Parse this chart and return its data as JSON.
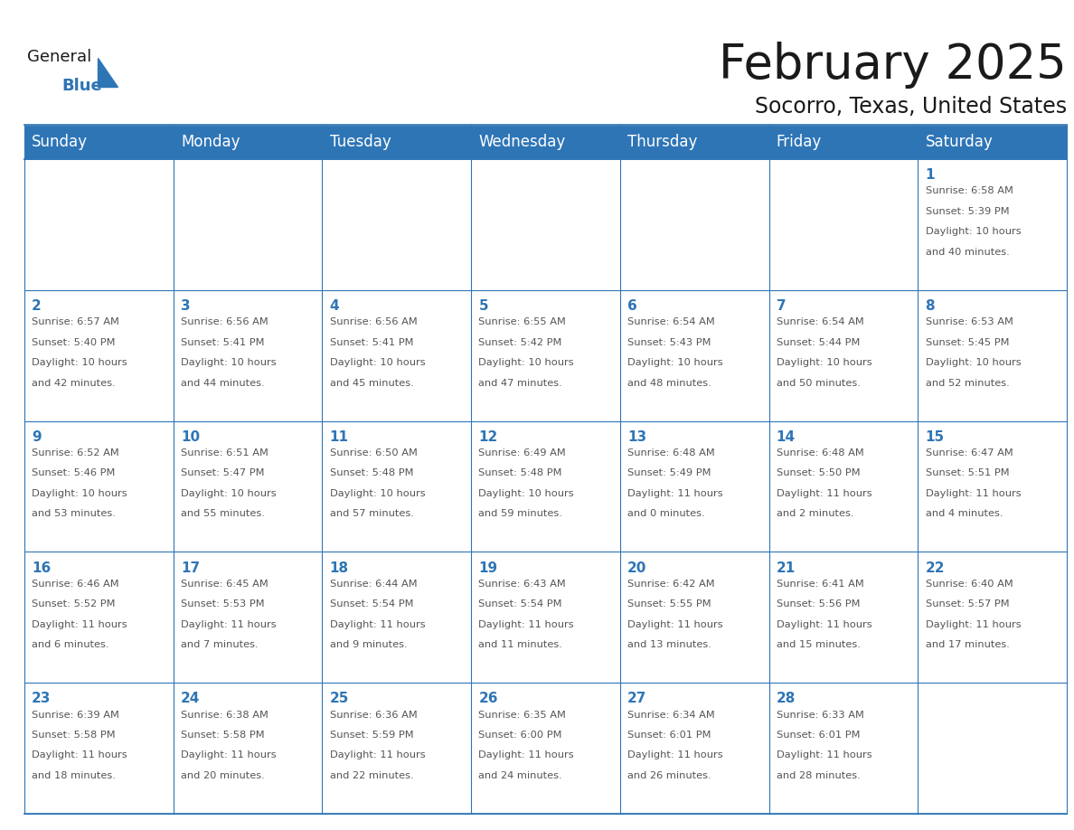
{
  "title": "February 2025",
  "subtitle": "Socorro, Texas, United States",
  "header_color": "#2e75b6",
  "header_text_color": "#ffffff",
  "cell_bg_color": "#ffffff",
  "cell_border_color": "#2e75b6",
  "day_number_color": "#2e75b6",
  "detail_text_color": "#555555",
  "grid_line_color": "#c0cfe0",
  "days_of_week": [
    "Sunday",
    "Monday",
    "Tuesday",
    "Wednesday",
    "Thursday",
    "Friday",
    "Saturday"
  ],
  "title_fontsize": 38,
  "subtitle_fontsize": 17,
  "header_fontsize": 12,
  "day_num_fontsize": 11,
  "detail_fontsize": 8.2,
  "logo_general_color": "#1a1a1a",
  "logo_blue_color": "#2e75b6",
  "calendar_data": [
    [
      {
        "day": null,
        "lines": []
      },
      {
        "day": null,
        "lines": []
      },
      {
        "day": null,
        "lines": []
      },
      {
        "day": null,
        "lines": []
      },
      {
        "day": null,
        "lines": []
      },
      {
        "day": null,
        "lines": []
      },
      {
        "day": 1,
        "lines": [
          "Sunrise: 6:58 AM",
          "Sunset: 5:39 PM",
          "Daylight: 10 hours",
          "and 40 minutes."
        ]
      }
    ],
    [
      {
        "day": 2,
        "lines": [
          "Sunrise: 6:57 AM",
          "Sunset: 5:40 PM",
          "Daylight: 10 hours",
          "and 42 minutes."
        ]
      },
      {
        "day": 3,
        "lines": [
          "Sunrise: 6:56 AM",
          "Sunset: 5:41 PM",
          "Daylight: 10 hours",
          "and 44 minutes."
        ]
      },
      {
        "day": 4,
        "lines": [
          "Sunrise: 6:56 AM",
          "Sunset: 5:41 PM",
          "Daylight: 10 hours",
          "and 45 minutes."
        ]
      },
      {
        "day": 5,
        "lines": [
          "Sunrise: 6:55 AM",
          "Sunset: 5:42 PM",
          "Daylight: 10 hours",
          "and 47 minutes."
        ]
      },
      {
        "day": 6,
        "lines": [
          "Sunrise: 6:54 AM",
          "Sunset: 5:43 PM",
          "Daylight: 10 hours",
          "and 48 minutes."
        ]
      },
      {
        "day": 7,
        "lines": [
          "Sunrise: 6:54 AM",
          "Sunset: 5:44 PM",
          "Daylight: 10 hours",
          "and 50 minutes."
        ]
      },
      {
        "day": 8,
        "lines": [
          "Sunrise: 6:53 AM",
          "Sunset: 5:45 PM",
          "Daylight: 10 hours",
          "and 52 minutes."
        ]
      }
    ],
    [
      {
        "day": 9,
        "lines": [
          "Sunrise: 6:52 AM",
          "Sunset: 5:46 PM",
          "Daylight: 10 hours",
          "and 53 minutes."
        ]
      },
      {
        "day": 10,
        "lines": [
          "Sunrise: 6:51 AM",
          "Sunset: 5:47 PM",
          "Daylight: 10 hours",
          "and 55 minutes."
        ]
      },
      {
        "day": 11,
        "lines": [
          "Sunrise: 6:50 AM",
          "Sunset: 5:48 PM",
          "Daylight: 10 hours",
          "and 57 minutes."
        ]
      },
      {
        "day": 12,
        "lines": [
          "Sunrise: 6:49 AM",
          "Sunset: 5:48 PM",
          "Daylight: 10 hours",
          "and 59 minutes."
        ]
      },
      {
        "day": 13,
        "lines": [
          "Sunrise: 6:48 AM",
          "Sunset: 5:49 PM",
          "Daylight: 11 hours",
          "and 0 minutes."
        ]
      },
      {
        "day": 14,
        "lines": [
          "Sunrise: 6:48 AM",
          "Sunset: 5:50 PM",
          "Daylight: 11 hours",
          "and 2 minutes."
        ]
      },
      {
        "day": 15,
        "lines": [
          "Sunrise: 6:47 AM",
          "Sunset: 5:51 PM",
          "Daylight: 11 hours",
          "and 4 minutes."
        ]
      }
    ],
    [
      {
        "day": 16,
        "lines": [
          "Sunrise: 6:46 AM",
          "Sunset: 5:52 PM",
          "Daylight: 11 hours",
          "and 6 minutes."
        ]
      },
      {
        "day": 17,
        "lines": [
          "Sunrise: 6:45 AM",
          "Sunset: 5:53 PM",
          "Daylight: 11 hours",
          "and 7 minutes."
        ]
      },
      {
        "day": 18,
        "lines": [
          "Sunrise: 6:44 AM",
          "Sunset: 5:54 PM",
          "Daylight: 11 hours",
          "and 9 minutes."
        ]
      },
      {
        "day": 19,
        "lines": [
          "Sunrise: 6:43 AM",
          "Sunset: 5:54 PM",
          "Daylight: 11 hours",
          "and 11 minutes."
        ]
      },
      {
        "day": 20,
        "lines": [
          "Sunrise: 6:42 AM",
          "Sunset: 5:55 PM",
          "Daylight: 11 hours",
          "and 13 minutes."
        ]
      },
      {
        "day": 21,
        "lines": [
          "Sunrise: 6:41 AM",
          "Sunset: 5:56 PM",
          "Daylight: 11 hours",
          "and 15 minutes."
        ]
      },
      {
        "day": 22,
        "lines": [
          "Sunrise: 6:40 AM",
          "Sunset: 5:57 PM",
          "Daylight: 11 hours",
          "and 17 minutes."
        ]
      }
    ],
    [
      {
        "day": 23,
        "lines": [
          "Sunrise: 6:39 AM",
          "Sunset: 5:58 PM",
          "Daylight: 11 hours",
          "and 18 minutes."
        ]
      },
      {
        "day": 24,
        "lines": [
          "Sunrise: 6:38 AM",
          "Sunset: 5:58 PM",
          "Daylight: 11 hours",
          "and 20 minutes."
        ]
      },
      {
        "day": 25,
        "lines": [
          "Sunrise: 6:36 AM",
          "Sunset: 5:59 PM",
          "Daylight: 11 hours",
          "and 22 minutes."
        ]
      },
      {
        "day": 26,
        "lines": [
          "Sunrise: 6:35 AM",
          "Sunset: 6:00 PM",
          "Daylight: 11 hours",
          "and 24 minutes."
        ]
      },
      {
        "day": 27,
        "lines": [
          "Sunrise: 6:34 AM",
          "Sunset: 6:01 PM",
          "Daylight: 11 hours",
          "and 26 minutes."
        ]
      },
      {
        "day": 28,
        "lines": [
          "Sunrise: 6:33 AM",
          "Sunset: 6:01 PM",
          "Daylight: 11 hours",
          "and 28 minutes."
        ]
      },
      {
        "day": null,
        "lines": []
      }
    ]
  ]
}
